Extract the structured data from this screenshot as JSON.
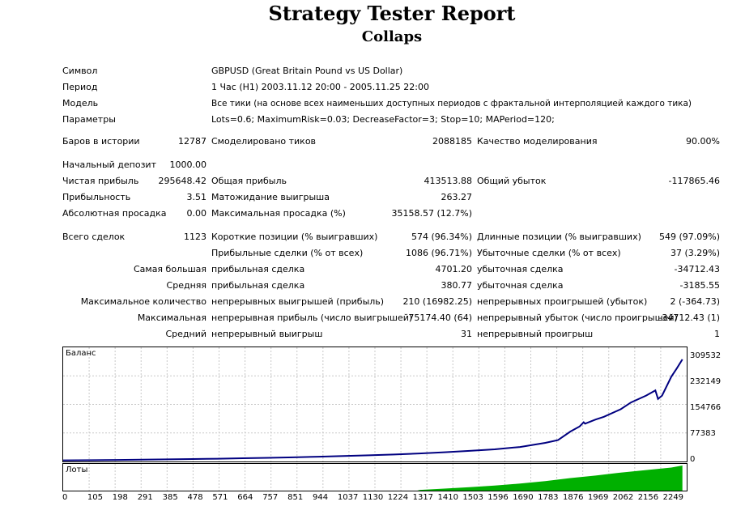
{
  "report": {
    "title": "Strategy Tester Report",
    "subtitle": "Collaps"
  },
  "info": {
    "symbol_label": "Символ",
    "symbol_value": "GBPUSD (Great Britain Pound vs US Dollar)",
    "period_label": "Период",
    "period_value": "1 Час (H1) 2003.11.12 20:00 - 2005.11.25 22:00",
    "model_label": "Модель",
    "model_value": "Все тики (на основе всех наименьших доступных периодов с фрактальной интерполяцией каждого тика)",
    "params_label": "Параметры",
    "params_value": "Lots=0.6; MaximumRisk=0.03; DecreaseFactor=3; Stop=10; MAPeriod=120;"
  },
  "stats": {
    "bars_label": "Баров в истории",
    "bars_value": "12787",
    "ticks_label": "Смоделировано тиков",
    "ticks_value": "2088185",
    "quality_label": "Качество моделирования",
    "quality_value": "90.00%",
    "deposit_label": "Начальный депозит",
    "deposit_value": "1000.00",
    "net_label": "Чистая прибыль",
    "net_value": "295648.42",
    "gross_profit_label": "Общая прибыль",
    "gross_profit_value": "413513.88",
    "gross_loss_label": "Общий убыток",
    "gross_loss_value": "-117865.46",
    "pf_label": "Прибыльность",
    "pf_value": "3.51",
    "expected_label": "Матожидание выигрыша",
    "expected_value": "263.27",
    "abs_dd_label": "Абсолютная просадка",
    "abs_dd_value": "0.00",
    "max_dd_label": "Максимальная просадка (%)",
    "max_dd_value": "35158.57 (12.7%)",
    "total_label": "Всего сделок",
    "total_value": "1123",
    "short_label": "Короткие позиции (% выигравших)",
    "short_value": "574 (96.34%)",
    "long_label": "Длинные позиции (% выигравших)",
    "long_value": "549 (97.09%)",
    "profit_trades_label": "Прибыльные сделки (% от всех)",
    "profit_trades_value": "1086 (96.71%)",
    "loss_trades_label": "Убыточные сделки (% от всех)",
    "loss_trades_value": "37 (3.29%)",
    "largest_label": "Самая большая",
    "largest_profit_label": "прибыльная сделка",
    "largest_profit_value": "4701.20",
    "largest_loss_label": "убыточная сделка",
    "largest_loss_value": "-34712.43",
    "average_label": "Средняя",
    "average_profit_label": "прибыльная сделка",
    "average_profit_value": "380.77",
    "average_loss_label": "убыточная сделка",
    "average_loss_value": "-3185.55",
    "maxcount_label": "Максимальное количество",
    "maxcount_wins_label": "непрерывных выигрышей (прибыль)",
    "maxcount_wins_value": "210 (16982.25)",
    "maxcount_losses_label": "непрерывных проигрышей (убыток)",
    "maxcount_losses_value": "2 (-364.73)",
    "maximal_label": "Максимальная",
    "maximal_profit_label": "непрерывная прибыль (число выигрышей)",
    "maximal_profit_value": "75174.40 (64)",
    "maximal_loss_label": "непрерывный убыток (число проигрышей)",
    "maximal_loss_value": "-34712.43 (1)",
    "avg_cons_label": "Средний",
    "avg_cons_wins_label": "непрерывный выигрыш",
    "avg_cons_wins_value": "31",
    "avg_cons_losses_label": "непрерывный проигрыш",
    "avg_cons_losses_value": "1"
  },
  "chart_data": [
    {
      "type": "line",
      "title": "Баланс",
      "color": "#000080",
      "ylim": [
        0,
        309532
      ],
      "yticks": [
        "309532",
        "232149",
        "154766",
        "77383",
        "0"
      ],
      "xlim": [
        0,
        2300
      ],
      "x": [
        0,
        105,
        198,
        291,
        385,
        478,
        571,
        664,
        757,
        851,
        944,
        1037,
        1130,
        1224,
        1317,
        1410,
        1503,
        1596,
        1690,
        1783,
        1830,
        1876,
        1910,
        1925,
        1930,
        1969,
        2000,
        2062,
        2100,
        2156,
        2190,
        2200,
        2215,
        2249,
        2270,
        2290
      ],
      "y": [
        1000,
        1500,
        2200,
        3000,
        3800,
        4700,
        5700,
        7000,
        8300,
        9800,
        11500,
        13400,
        15600,
        18000,
        21000,
        24500,
        28500,
        33000,
        40000,
        52000,
        60000,
        85000,
        100000,
        112000,
        108000,
        120000,
        128000,
        150000,
        170000,
        190000,
        205000,
        180000,
        190000,
        245000,
        270000,
        295648
      ]
    },
    {
      "type": "area",
      "title": "Лоты",
      "color": "#00b000",
      "xlim": [
        0,
        2300
      ],
      "x": [
        0,
        1310,
        1320,
        1410,
        1503,
        1596,
        1690,
        1783,
        1876,
        1969,
        2062,
        2156,
        2249,
        2290
      ],
      "values": [
        0,
        0,
        0.03,
        0.08,
        0.14,
        0.2,
        0.28,
        0.38,
        0.5,
        0.6,
        0.72,
        0.82,
        0.92,
        1.0
      ],
      "xticks": [
        "0",
        "105",
        "198",
        "291",
        "385",
        "478",
        "571",
        "664",
        "757",
        "851",
        "944",
        "1037",
        "1130",
        "1224",
        "1317",
        "1410",
        "1503",
        "1596",
        "1690",
        "1783",
        "1876",
        "1969",
        "2062",
        "2156",
        "2249"
      ]
    }
  ]
}
